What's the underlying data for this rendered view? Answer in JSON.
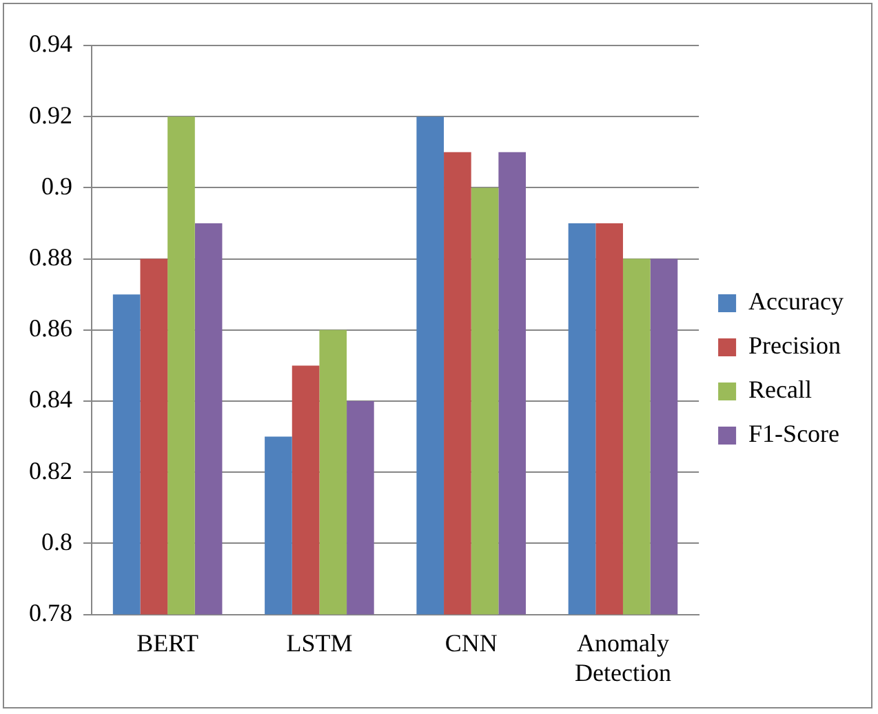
{
  "chart_data": {
    "type": "bar",
    "categories": [
      "BERT",
      "LSTM",
      "CNN",
      "Anomaly Detection"
    ],
    "series": [
      {
        "name": "Accuracy",
        "color": "#4f81bd",
        "values": [
          0.87,
          0.83,
          0.92,
          0.89
        ]
      },
      {
        "name": "Precision",
        "color": "#c0504d",
        "values": [
          0.88,
          0.85,
          0.91,
          0.89
        ]
      },
      {
        "name": "Recall",
        "color": "#9bbb59",
        "values": [
          0.92,
          0.86,
          0.9,
          0.88
        ]
      },
      {
        "name": "F1-Score",
        "color": "#8064a2",
        "values": [
          0.89,
          0.84,
          0.91,
          0.88
        ]
      }
    ],
    "ylim": [
      0.78,
      0.94
    ],
    "yticks": [
      0.78,
      0.8,
      0.82,
      0.84,
      0.86,
      0.88,
      0.9,
      0.92,
      0.94
    ],
    "grid": "y",
    "legend": "right"
  }
}
